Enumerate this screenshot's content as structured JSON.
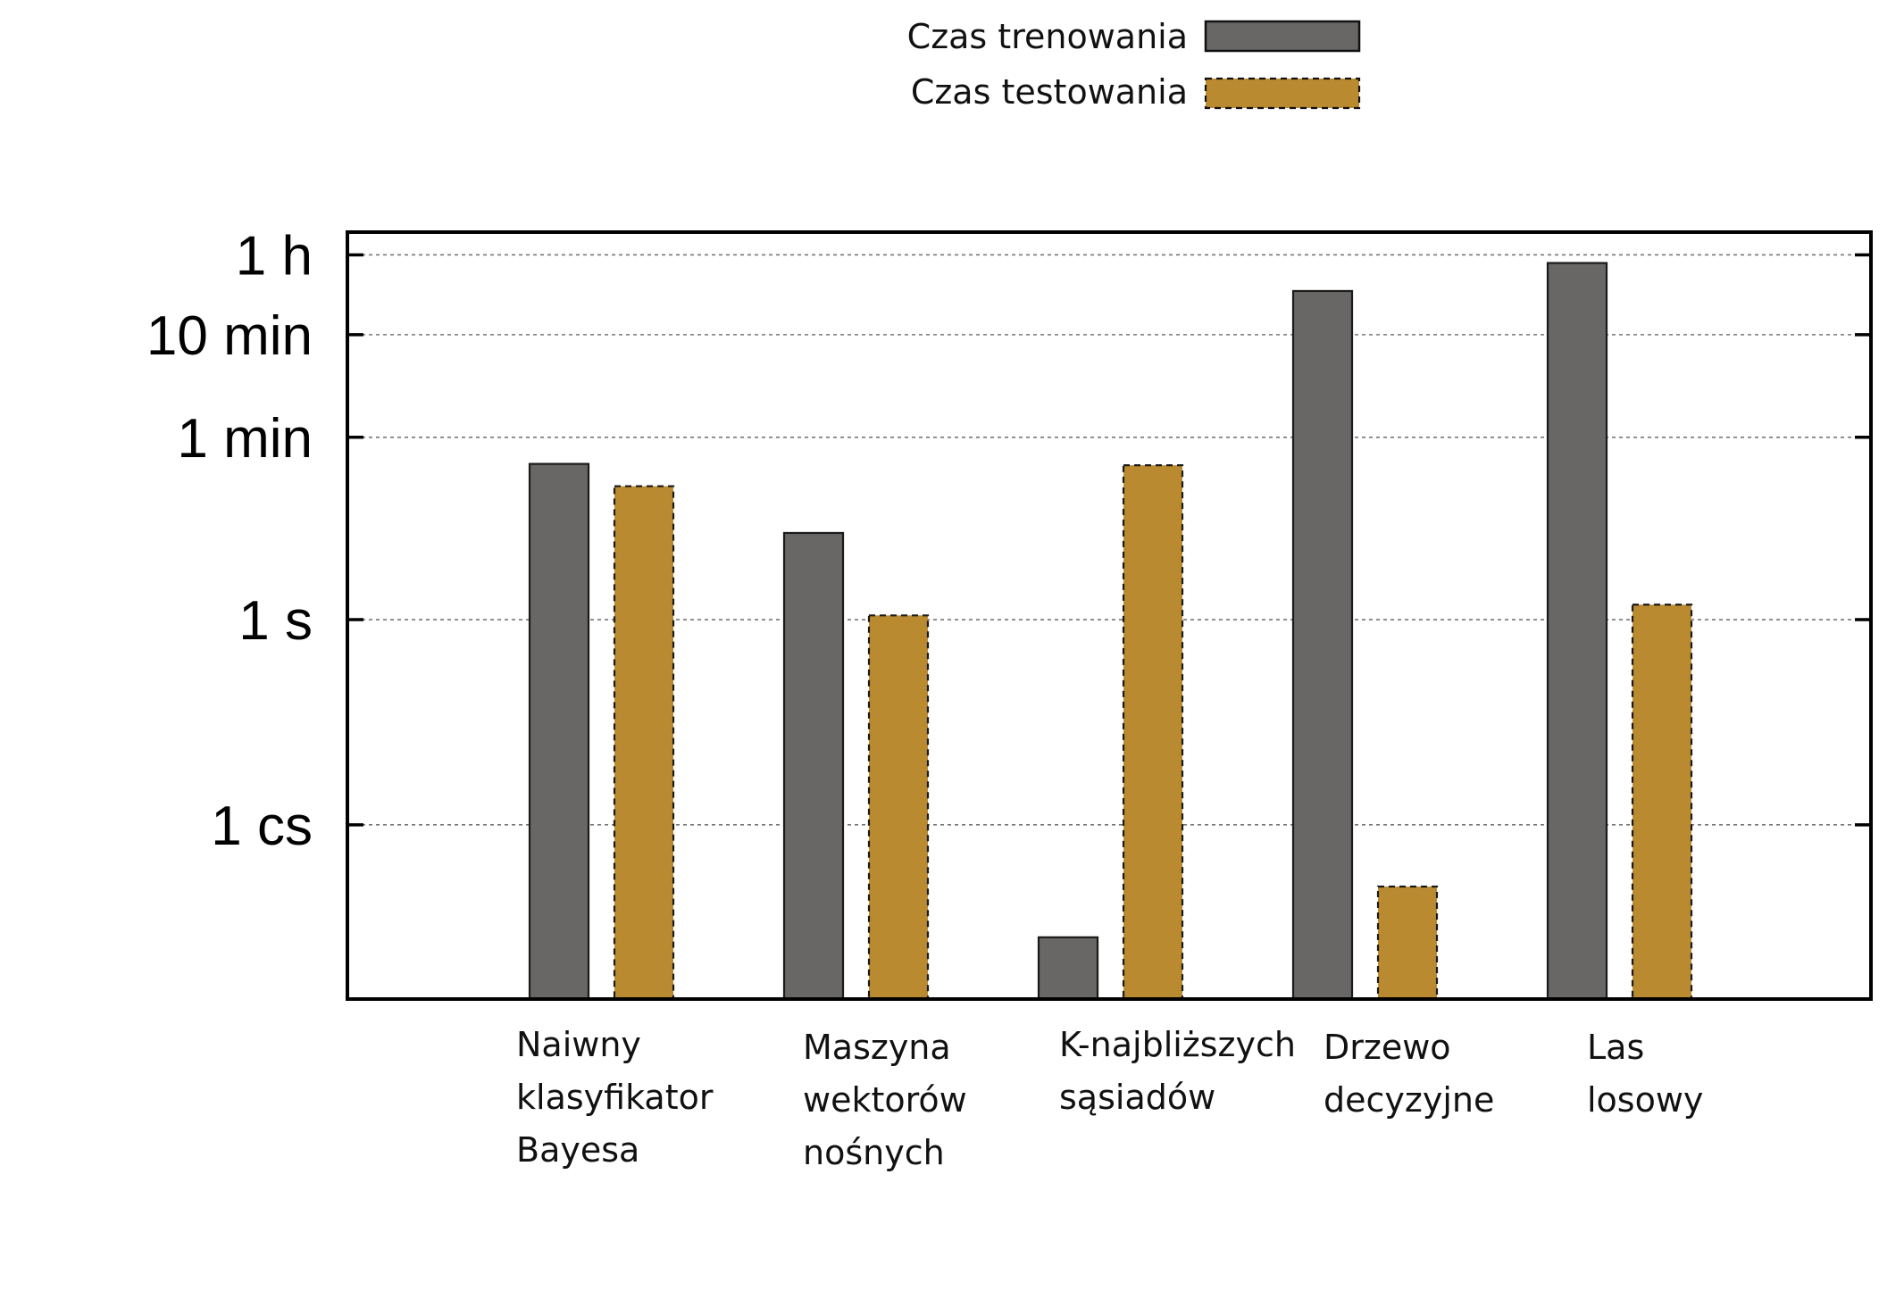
{
  "chart_data": {
    "type": "bar",
    "scale": "log",
    "grid": true,
    "legend_position": "top-center",
    "colors": {
      "training": "#686765",
      "testing": "#b98a30"
    },
    "y_ticks": [
      {
        "label": "1 cs",
        "value_s": 0.01
      },
      {
        "label": "1 s",
        "value_s": 1
      },
      {
        "label": "1 min",
        "value_s": 60
      },
      {
        "label": "10 min",
        "value_s": 600
      },
      {
        "label": "1 h",
        "value_s": 3600
      }
    ],
    "ylim_s": [
      0.0002,
      6000
    ],
    "categories": [
      [
        "Naiwny",
        "klasyfikator",
        "Bayesa"
      ],
      [
        "Maszyna",
        "wektorów",
        "nośnych"
      ],
      [
        "K-najbliższych",
        "sąsiadów"
      ],
      [
        "Drzewo",
        "decyzyjne"
      ],
      [
        "Las",
        "losowy"
      ]
    ],
    "series": [
      {
        "name": "Czas trenowania",
        "style": "solid",
        "values_s": [
          33,
          7,
          0.0008,
          1600,
          3000
        ]
      },
      {
        "name": "Czas testowania",
        "style": "dashed",
        "values_s": [
          20,
          1.1,
          32,
          0.0025,
          1.4
        ]
      }
    ]
  }
}
